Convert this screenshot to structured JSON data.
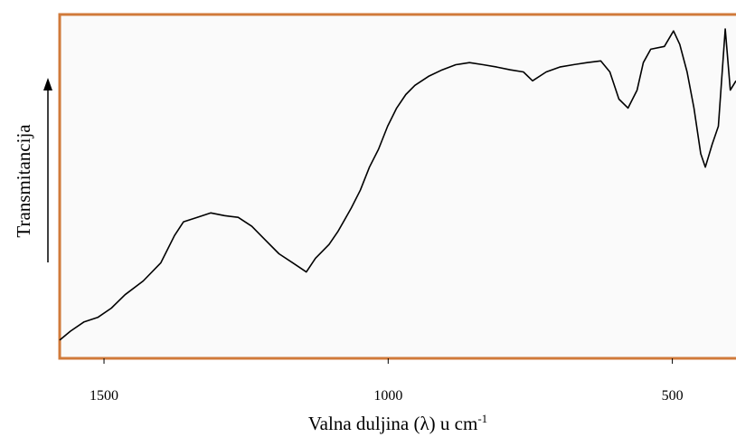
{
  "chart_data": {
    "type": "line",
    "x_label": "Valna duljina (λ) u cm",
    "x_label_sup": "-1",
    "y_label": "Transmitancija",
    "xlim": [
      1578,
      388
    ],
    "ylim": [
      0,
      100
    ],
    "xticks": [
      1500,
      1000,
      500
    ],
    "color": "#000000",
    "x": [
      1578,
      1559,
      1535,
      1511,
      1487,
      1463,
      1431,
      1400,
      1376,
      1360,
      1336,
      1312,
      1288,
      1264,
      1240,
      1216,
      1192,
      1168,
      1144,
      1128,
      1104,
      1088,
      1065,
      1049,
      1033,
      1017,
      1001,
      985,
      969,
      953,
      929,
      905,
      881,
      857,
      833,
      809,
      785,
      762,
      746,
      722,
      698,
      674,
      650,
      626,
      610,
      594,
      578,
      562,
      551,
      538,
      514,
      498,
      487,
      474,
      462,
      450,
      442,
      430,
      419,
      407,
      398,
      388
    ],
    "values": [
      5.3,
      7.9,
      10.6,
      11.9,
      14.6,
      18.5,
      22.5,
      27.8,
      35.7,
      39.7,
      41.0,
      42.3,
      41.5,
      41.0,
      38.4,
      34.4,
      30.4,
      27.8,
      25.1,
      29.1,
      33.1,
      37.0,
      43.7,
      48.9,
      55.6,
      60.8,
      67.5,
      72.8,
      76.7,
      79.4,
      82.0,
      83.9,
      85.4,
      86.0,
      85.4,
      84.7,
      83.9,
      83.3,
      80.7,
      83.3,
      84.7,
      85.4,
      86.0,
      86.5,
      83.3,
      75.4,
      72.8,
      78.0,
      86.0,
      89.9,
      90.7,
      95.2,
      91.3,
      83.3,
      72.8,
      59.5,
      55.6,
      62.2,
      67.5,
      95.8,
      78.0,
      80.7
    ]
  }
}
